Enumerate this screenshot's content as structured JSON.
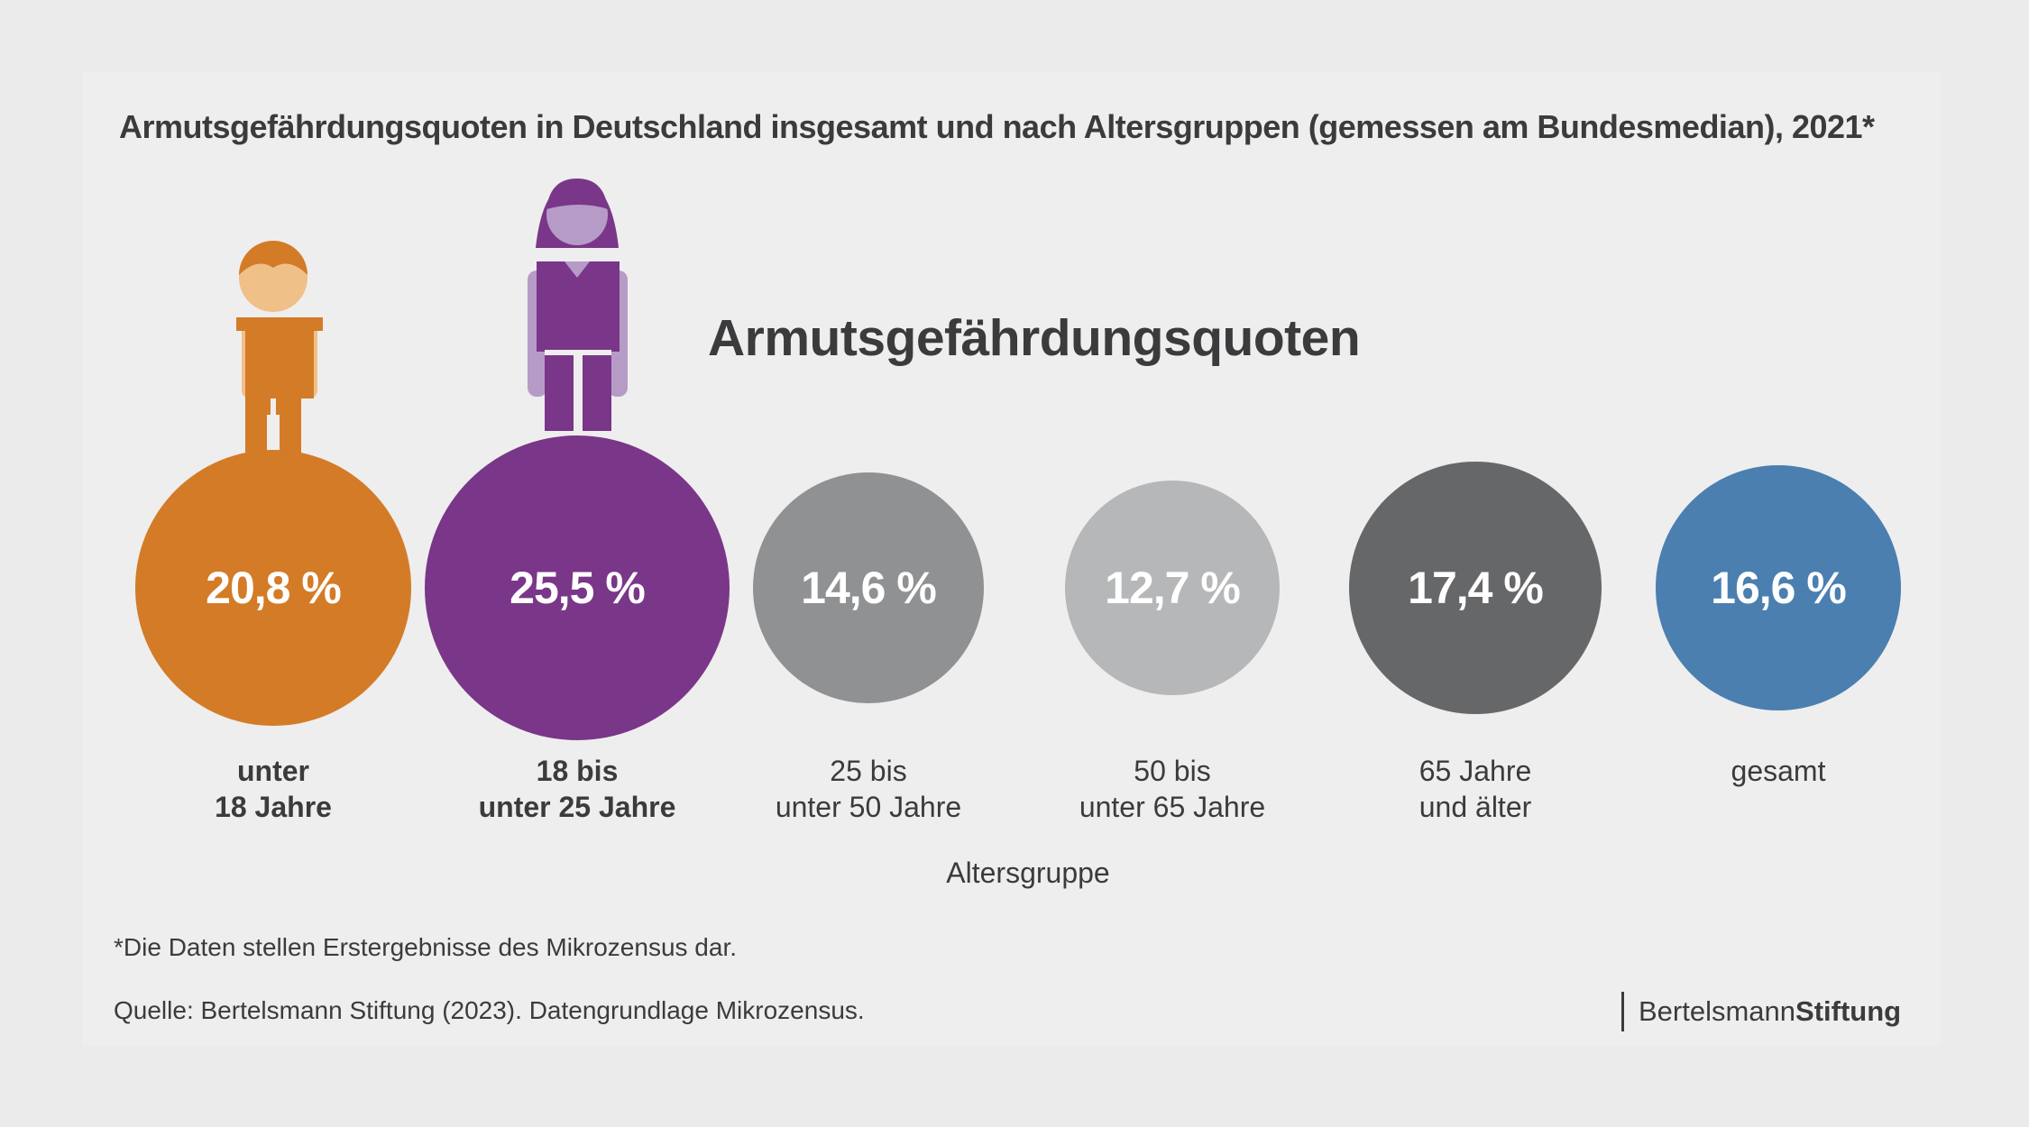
{
  "chart_data": {
    "type": "bubble",
    "title": "Armutsgefährdungsquoten in Deutschland insgesamt und nach Altersgruppen (gemessen am Bundesmedian), 2021*",
    "subtitle": "Armutsgefährdungsquoten",
    "xlabel": "Altersgruppe",
    "unit": "%",
    "categories": [
      {
        "line1": "unter",
        "line2": "18 Jahre",
        "value": 20.8,
        "label": "20,8 %",
        "color": "#d47b27",
        "bold": true
      },
      {
        "line1": "18 bis",
        "line2": "unter 25 Jahre",
        "value": 25.5,
        "label": "25,5 %",
        "color": "#7a3688",
        "bold": true
      },
      {
        "line1": "25 bis",
        "line2": "unter 50 Jahre",
        "value": 14.6,
        "label": "14,6 %",
        "color": "#909193",
        "bold": false
      },
      {
        "line1": "50 bis",
        "line2": "unter 65 Jahre",
        "value": 12.7,
        "label": "12,7 %",
        "color": "#b6b7b8",
        "bold": false
      },
      {
        "line1": "65 Jahre",
        "line2": "und älter",
        "value": 17.4,
        "label": "17,4 %",
        "color": "#666769",
        "bold": false
      },
      {
        "line1": "gesamt",
        "line2": "",
        "value": 16.6,
        "label": "16,6 %",
        "color": "#4a7fb0",
        "bold": false
      }
    ]
  },
  "footnote": "*Die Daten stellen Erstergebnisse des Mikrozensus dar.",
  "source": "Quelle: Bertelsmann Stiftung (2023). Datengrundlage Mikrozensus.",
  "logo": {
    "part1": "Bertelsmann",
    "part2": "Stiftung"
  }
}
